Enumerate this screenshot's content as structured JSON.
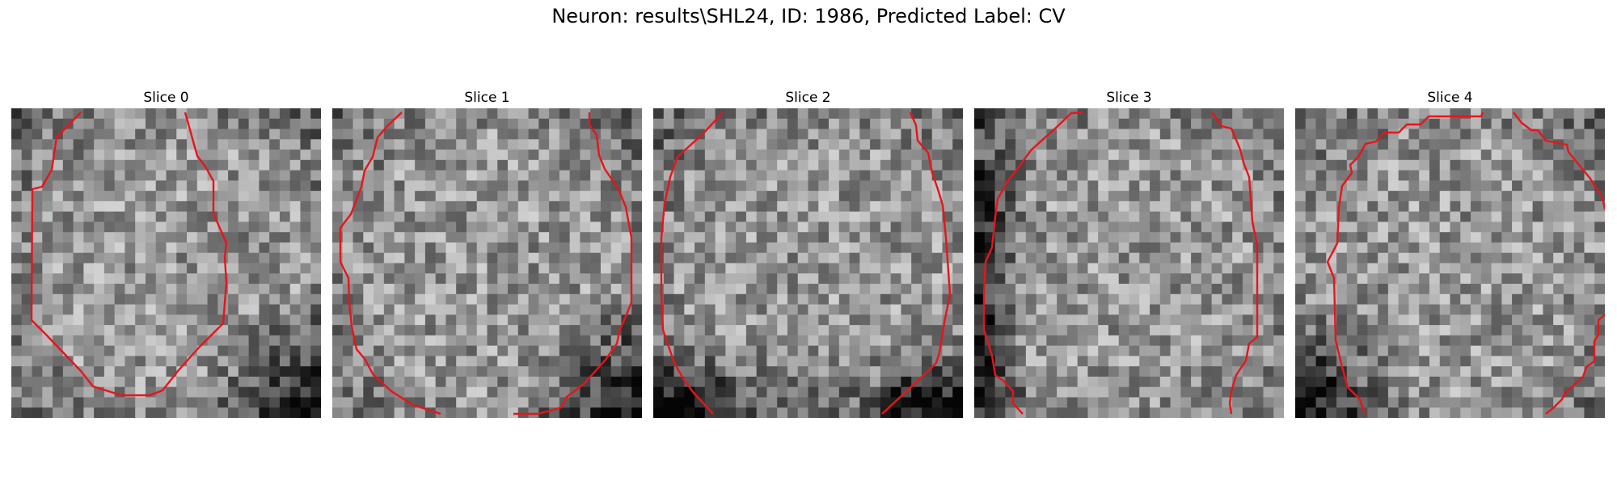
{
  "figure": {
    "title": "Neuron: results\\SHL24, ID: 1986, Predicted Label: CV"
  },
  "image": {
    "colormap": "gray",
    "grid_cells_per_side": 30,
    "contour_color": "#e8141b"
  },
  "slices": [
    {
      "label": "Slice 0",
      "dark_corner": "bottom-right"
    },
    {
      "label": "Slice 1",
      "dark_corner": "bottom-right"
    },
    {
      "label": "Slice 2",
      "dark_corner": "bottom"
    },
    {
      "label": "Slice 3",
      "dark_corner": "left"
    },
    {
      "label": "Slice 4",
      "dark_corner": "bottom-left"
    }
  ]
}
